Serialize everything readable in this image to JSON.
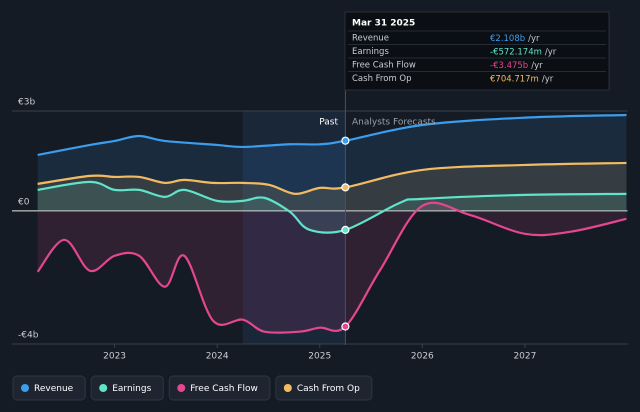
{
  "chart_data": {
    "type": "line",
    "xlim": [
      2022,
      2028
    ],
    "xticks": [
      2023,
      2024,
      2025,
      2026,
      2027
    ],
    "ylim": [
      -4,
      3
    ],
    "yticks": [
      {
        "value": 3,
        "label": "€3b"
      },
      {
        "value": 0,
        "label": "€0"
      },
      {
        "value": -4,
        "label": "-€4b"
      }
    ],
    "past_end": 2025.25,
    "past_label": "Past",
    "forecast_label": "Analysts Forecasts",
    "series": [
      {
        "name": "Revenue",
        "color": "#3b9ded",
        "x": [
          2022.25,
          2022.76,
          2023,
          2023.24,
          2023.49,
          2024,
          2024.25,
          2024.71,
          2025,
          2025.25,
          2026,
          2027,
          2027.99
        ],
        "values": [
          1.68,
          1.98,
          2.1,
          2.25,
          2.1,
          1.98,
          1.92,
          2.0,
          2.0,
          2.108,
          2.58,
          2.8,
          2.88
        ]
      },
      {
        "name": "Earnings",
        "color": "#5fe3c9",
        "x": [
          2022.25,
          2022.76,
          2023,
          2023.24,
          2023.49,
          2023.68,
          2024,
          2024.25,
          2024.46,
          2024.71,
          2024.9,
          2025.25,
          2025.78,
          2026,
          2027,
          2027.99
        ],
        "values": [
          0.63,
          0.87,
          0.63,
          0.63,
          0.42,
          0.63,
          0.3,
          0.3,
          0.39,
          -0.03,
          -0.57,
          -0.572,
          0.24,
          0.36,
          0.48,
          0.51
        ]
      },
      {
        "name": "Free Cash Flow",
        "color": "#e3478f",
        "x": [
          2022.25,
          2022.51,
          2022.76,
          2023,
          2023.24,
          2023.49,
          2023.68,
          2023.96,
          2024.25,
          2024.46,
          2024.8,
          2025,
          2025.25,
          2025.59,
          2026,
          2026.46,
          2027,
          2027.44,
          2027.99
        ],
        "values": [
          -1.83,
          -0.87,
          -1.8,
          -1.35,
          -1.35,
          -2.28,
          -1.35,
          -3.3,
          -3.27,
          -3.63,
          -3.63,
          -3.51,
          -3.475,
          -1.77,
          0.15,
          -0.12,
          -0.69,
          -0.63,
          -0.24
        ]
      },
      {
        "name": "Cash From Op",
        "color": "#f2bb62",
        "x": [
          2022.25,
          2022.76,
          2023,
          2023.24,
          2023.49,
          2023.68,
          2023.96,
          2024.25,
          2024.51,
          2024.76,
          2025,
          2025.25,
          2026,
          2027,
          2027.99
        ],
        "values": [
          0.81,
          1.05,
          1.02,
          1.02,
          0.84,
          0.93,
          0.84,
          0.84,
          0.78,
          0.51,
          0.69,
          0.705,
          1.23,
          1.38,
          1.44
        ]
      }
    ],
    "tooltip": {
      "title": "Mar 31 2025",
      "rows": [
        {
          "label": "Revenue",
          "value": 2.108,
          "value_label": "€2.108b",
          "unit": "/yr"
        },
        {
          "label": "Earnings",
          "value": -0.572174,
          "value_label": "-€572.174m",
          "unit": "/yr"
        },
        {
          "label": "Free Cash Flow",
          "value": -3.475,
          "value_label": "-€3.475b",
          "unit": "/yr"
        },
        {
          "label": "Cash From Op",
          "value": 0.704717,
          "value_label": "€704.717m",
          "unit": "/yr"
        }
      ]
    }
  }
}
